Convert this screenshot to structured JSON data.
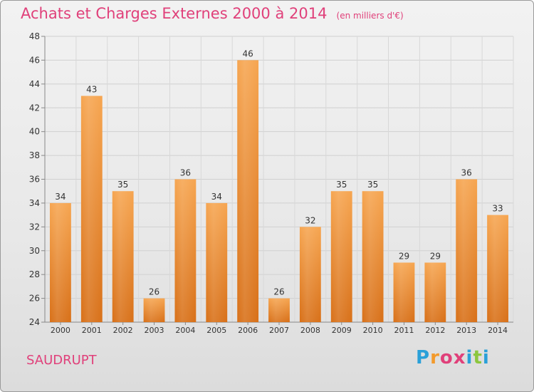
{
  "header": {
    "title": "Achats et Charges Externes 2000 à 2014",
    "subtitle": "(en milliers d'€)"
  },
  "footer": {
    "town": "SAUDRUPT",
    "logo": {
      "letters": [
        "P",
        "r",
        "o",
        "x",
        "i",
        "t",
        "i"
      ],
      "colors": [
        "#2aa0d8",
        "#f39a2b",
        "#e0407a",
        "#e0407a",
        "#2aa0d8",
        "#8cc63e",
        "#2aa0d8"
      ]
    }
  },
  "chart_data": {
    "type": "bar",
    "categories": [
      "2000",
      "2001",
      "2002",
      "2003",
      "2004",
      "2005",
      "2006",
      "2007",
      "2008",
      "2009",
      "2010",
      "2011",
      "2012",
      "2013",
      "2014"
    ],
    "values": [
      34,
      43,
      35,
      26,
      36,
      34,
      46,
      26,
      32,
      35,
      35,
      29,
      29,
      36,
      33
    ],
    "ylim": [
      24,
      48
    ],
    "yticks": [
      24,
      26,
      28,
      30,
      32,
      34,
      36,
      38,
      40,
      42,
      44,
      46,
      48
    ],
    "grid": true,
    "bar_color": "#f0902e",
    "data_labels": true
  }
}
